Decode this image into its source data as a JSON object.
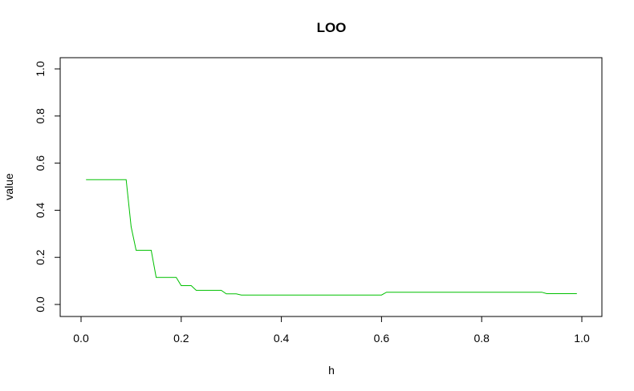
{
  "chart_data": {
    "type": "line",
    "title": "LOO",
    "xlabel": "h",
    "ylabel": "value",
    "xlim": [
      0,
      1
    ],
    "ylim": [
      0,
      1
    ],
    "x_ticks": [
      "0.0",
      "0.2",
      "0.4",
      "0.6",
      "0.8",
      "1.0"
    ],
    "y_ticks": [
      "0.0",
      "0.2",
      "0.4",
      "0.6",
      "0.8",
      "1.0"
    ],
    "grid": false,
    "series": [
      {
        "color": "#00c000",
        "x": [
          0.01,
          0.09,
          0.1,
          0.11,
          0.14,
          0.15,
          0.19,
          0.2,
          0.22,
          0.23,
          0.28,
          0.29,
          0.31,
          0.32,
          0.6,
          0.61,
          0.92,
          0.93,
          0.99
        ],
        "y": [
          0.53,
          0.53,
          0.33,
          0.23,
          0.23,
          0.115,
          0.115,
          0.08,
          0.08,
          0.06,
          0.06,
          0.045,
          0.045,
          0.04,
          0.04,
          0.052,
          0.052,
          0.046,
          0.046
        ]
      }
    ]
  }
}
